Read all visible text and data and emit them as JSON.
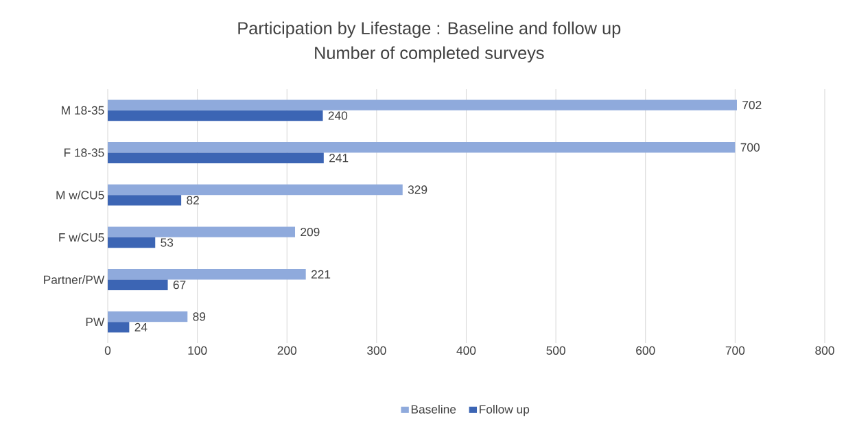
{
  "chart_data": {
    "type": "bar",
    "orientation": "horizontal",
    "title": "Participation by Lifestage : Baseline and follow up",
    "subtitle": "Number of completed surveys",
    "categories": [
      "M 18-35",
      "F 18-35",
      "M w/CU5",
      "F w/CU5",
      "Partner/PW",
      "PW"
    ],
    "series": [
      {
        "name": "Baseline",
        "color": "#8faadc",
        "values": [
          702,
          700,
          329,
          209,
          221,
          89
        ]
      },
      {
        "name": "Follow up",
        "color": "#3c65b4",
        "values": [
          240,
          241,
          82,
          53,
          67,
          24
        ]
      }
    ],
    "xlim": [
      0,
      800
    ],
    "xticks": [
      0,
      100,
      200,
      300,
      400,
      500,
      600,
      700,
      800
    ],
    "grid": "x",
    "legend": "bottom",
    "data_labels": true
  }
}
